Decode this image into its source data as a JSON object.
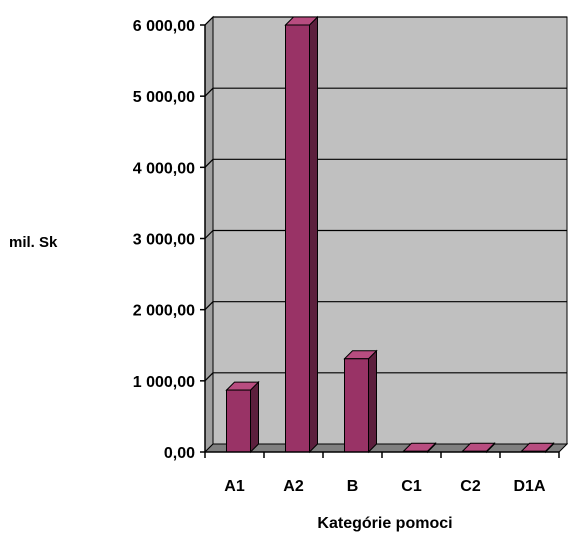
{
  "chart_data": {
    "type": "bar",
    "title": "",
    "xlabel": "Kategórie pomoci",
    "ylabel": "mil. Sk",
    "categories": [
      "A1",
      "A2",
      "B",
      "C1",
      "C2",
      "D1A"
    ],
    "values": [
      870,
      6000,
      1310,
      10,
      10,
      10
    ],
    "ylim": [
      0,
      6000
    ],
    "yticks": [
      0,
      1000,
      2000,
      3000,
      4000,
      5000,
      6000
    ],
    "ytick_labels": [
      "0,00",
      "1 000,00",
      "2 000,00",
      "3 000,00",
      "4 000,00",
      "5 000,00",
      "6 000,00"
    ],
    "grid": true,
    "legend": "none",
    "colors": {
      "bar_front": "#993366",
      "bar_side": "#5c1f3d",
      "bar_top": "#b84d80",
      "plot_back": "#c0c0c0",
      "plot_floor": "#808080",
      "plot_side": "#a0a0a0"
    }
  }
}
